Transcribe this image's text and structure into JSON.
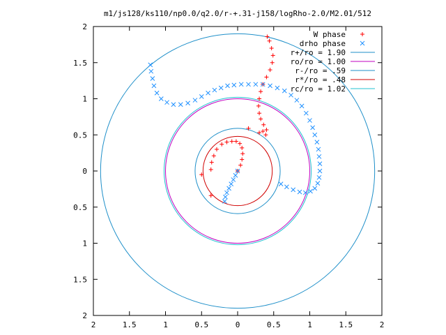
{
  "chart_data": {
    "type": "scatter",
    "title": "m1/js128/ks110/np0.0/q2.0/r-+.31-j158/logRho-2.0/M2.01/512",
    "xlabel": "",
    "ylabel": "",
    "xlim": [
      -2,
      2
    ],
    "ylim": [
      -2,
      2
    ],
    "xticks": [
      "2",
      "1.5",
      "1",
      "0.5",
      "0",
      "0.5",
      "1",
      "1.5",
      "2"
    ],
    "yticks": [
      "2",
      "1.5",
      "1",
      "0.5",
      "0",
      "0.5",
      "1",
      "1.5",
      "2"
    ],
    "grid": false,
    "legend_position": "top-right",
    "series": [
      {
        "name": "W phase",
        "marker": "plus",
        "color": "#ff0000",
        "points": [
          [
            0.0,
            0.0
          ],
          [
            0.04,
            0.08
          ],
          [
            0.06,
            0.16
          ],
          [
            0.07,
            0.24
          ],
          [
            0.06,
            0.32
          ],
          [
            0.03,
            0.38
          ],
          [
            -0.02,
            0.41
          ],
          [
            -0.08,
            0.41
          ],
          [
            -0.15,
            0.4
          ],
          [
            -0.22,
            0.37
          ],
          [
            -0.29,
            0.3
          ],
          [
            -0.33,
            0.21
          ],
          [
            -0.36,
            0.12
          ],
          [
            -0.37,
            0.02
          ],
          [
            -0.5,
            -0.05
          ],
          [
            -0.37,
            -0.34
          ],
          [
            0.15,
            0.59
          ],
          [
            0.39,
            0.5
          ],
          [
            0.4,
            0.57
          ],
          [
            0.36,
            0.64
          ],
          [
            0.32,
            0.72
          ],
          [
            0.3,
            0.8
          ],
          [
            0.29,
            0.9
          ],
          [
            0.3,
            1.0
          ],
          [
            0.32,
            1.1
          ],
          [
            0.35,
            1.2
          ],
          [
            0.4,
            1.3
          ],
          [
            0.45,
            1.4
          ],
          [
            0.48,
            1.5
          ],
          [
            0.49,
            1.6
          ],
          [
            0.47,
            1.7
          ],
          [
            0.44,
            1.8
          ],
          [
            0.41,
            1.86
          ],
          [
            0.35,
            0.55
          ],
          [
            0.3,
            0.53
          ]
        ]
      },
      {
        "name": "drho phase",
        "marker": "cross",
        "color": "#1e90ff",
        "points": [
          [
            0.0,
            0.0
          ],
          [
            -0.03,
            -0.06
          ],
          [
            -0.06,
            -0.12
          ],
          [
            -0.09,
            -0.18
          ],
          [
            -0.12,
            -0.24
          ],
          [
            -0.15,
            -0.3
          ],
          [
            -0.17,
            -0.36
          ],
          [
            -0.18,
            -0.42
          ],
          [
            0.6,
            -0.18
          ],
          [
            0.68,
            -0.22
          ],
          [
            0.77,
            -0.26
          ],
          [
            0.86,
            -0.29
          ],
          [
            0.94,
            -0.3
          ],
          [
            1.01,
            -0.28
          ],
          [
            1.07,
            -0.24
          ],
          [
            1.11,
            -0.17
          ],
          [
            1.13,
            -0.09
          ],
          [
            1.14,
            0.0
          ],
          [
            1.14,
            0.1
          ],
          [
            1.13,
            0.2
          ],
          [
            1.12,
            0.3
          ],
          [
            1.1,
            0.4
          ],
          [
            1.07,
            0.5
          ],
          [
            1.04,
            0.6
          ],
          [
            1.0,
            0.7
          ],
          [
            0.95,
            0.8
          ],
          [
            0.89,
            0.9
          ],
          [
            0.82,
            0.98
          ],
          [
            0.74,
            1.05
          ],
          [
            0.65,
            1.11
          ],
          [
            0.55,
            1.15
          ],
          [
            0.45,
            1.18
          ],
          [
            0.35,
            1.2
          ],
          [
            0.25,
            1.2
          ],
          [
            0.15,
            1.2
          ],
          [
            0.05,
            1.2
          ],
          [
            -0.05,
            1.19
          ],
          [
            -0.14,
            1.18
          ],
          [
            -0.23,
            1.15
          ],
          [
            -0.32,
            1.12
          ],
          [
            -0.41,
            1.08
          ],
          [
            -0.5,
            1.03
          ],
          [
            -0.59,
            0.98
          ],
          [
            -0.69,
            0.94
          ],
          [
            -0.79,
            0.92
          ],
          [
            -0.89,
            0.92
          ],
          [
            -0.98,
            0.95
          ],
          [
            -1.06,
            1.0
          ],
          [
            -1.12,
            1.08
          ],
          [
            -1.16,
            1.18
          ],
          [
            -1.18,
            1.28
          ],
          [
            -1.2,
            1.38
          ],
          [
            -1.21,
            1.47
          ]
        ]
      }
    ],
    "circles": [
      {
        "name": "r+/ro = 1.90",
        "radius": 1.9,
        "color": "#1e8fc9"
      },
      {
        "name": "ro/ro = 1.00",
        "radius": 1.0,
        "color": "#c000c0"
      },
      {
        "name": "r-/ro = .59",
        "radius": 0.59,
        "color": "#1e8fc9"
      },
      {
        "name": "r*/ro = .48",
        "radius": 0.48,
        "color": "#d00000"
      },
      {
        "name": "rc/ro = 1.02",
        "radius": 1.02,
        "color": "#20c0d0"
      }
    ]
  }
}
